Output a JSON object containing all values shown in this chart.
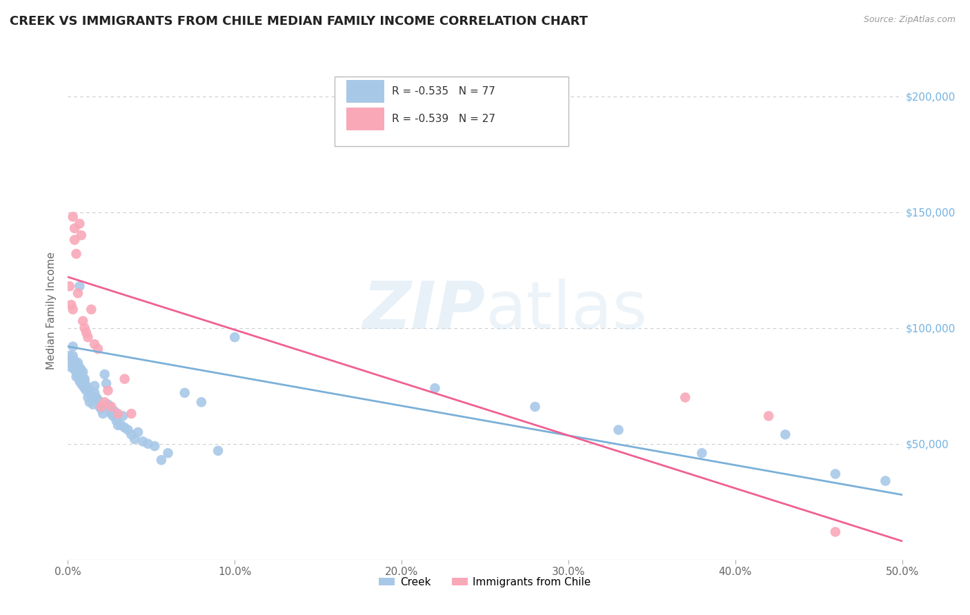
{
  "title": "CREEK VS IMMIGRANTS FROM CHILE MEDIAN FAMILY INCOME CORRELATION CHART",
  "source": "Source: ZipAtlas.com",
  "ylabel": "Median Family Income",
  "watermark_zip": "ZIP",
  "watermark_atlas": "atlas",
  "creek_R": -0.535,
  "creek_N": 77,
  "chile_R": -0.539,
  "chile_N": 27,
  "creek_color": "#a8c8e8",
  "chile_color": "#f9a8b8",
  "creek_line_color": "#7ab0d8",
  "chile_line_color": "#f06090",
  "background_color": "#ffffff",
  "grid_color": "#cccccc",
  "right_axis_color": "#74b3e0",
  "xmin": 0.0,
  "xmax": 0.5,
  "ymin": 0,
  "ymax": 215000,
  "creek_x": [
    0.001,
    0.002,
    0.002,
    0.003,
    0.003,
    0.003,
    0.004,
    0.004,
    0.004,
    0.005,
    0.005,
    0.005,
    0.005,
    0.006,
    0.006,
    0.006,
    0.007,
    0.007,
    0.007,
    0.007,
    0.008,
    0.008,
    0.008,
    0.009,
    0.009,
    0.009,
    0.01,
    0.01,
    0.01,
    0.011,
    0.011,
    0.012,
    0.012,
    0.013,
    0.013,
    0.014,
    0.015,
    0.015,
    0.016,
    0.016,
    0.017,
    0.018,
    0.019,
    0.02,
    0.021,
    0.022,
    0.023,
    0.024,
    0.025,
    0.026,
    0.027,
    0.028,
    0.029,
    0.03,
    0.032,
    0.033,
    0.034,
    0.036,
    0.038,
    0.04,
    0.042,
    0.045,
    0.048,
    0.052,
    0.056,
    0.06,
    0.07,
    0.08,
    0.09,
    0.1,
    0.22,
    0.28,
    0.33,
    0.38,
    0.43,
    0.46,
    0.49
  ],
  "creek_y": [
    88000,
    86000,
    83000,
    92000,
    88000,
    84000,
    86000,
    82000,
    85000,
    84000,
    81000,
    79000,
    83000,
    82000,
    79000,
    85000,
    118000,
    80000,
    77000,
    83000,
    79000,
    76000,
    82000,
    78000,
    75000,
    81000,
    78000,
    74000,
    77000,
    75000,
    73000,
    74000,
    70000,
    72000,
    68000,
    71000,
    69000,
    67000,
    72000,
    75000,
    70000,
    69000,
    66000,
    65000,
    63000,
    80000,
    76000,
    67000,
    65000,
    63000,
    62000,
    64000,
    60000,
    58000,
    58000,
    62000,
    57000,
    56000,
    54000,
    52000,
    55000,
    51000,
    50000,
    49000,
    43000,
    46000,
    72000,
    68000,
    47000,
    96000,
    74000,
    66000,
    56000,
    46000,
    54000,
    37000,
    34000
  ],
  "chile_x": [
    0.001,
    0.002,
    0.003,
    0.003,
    0.004,
    0.004,
    0.005,
    0.006,
    0.007,
    0.008,
    0.009,
    0.01,
    0.011,
    0.012,
    0.014,
    0.016,
    0.018,
    0.02,
    0.022,
    0.024,
    0.026,
    0.03,
    0.034,
    0.038,
    0.37,
    0.42,
    0.46
  ],
  "chile_y": [
    118000,
    110000,
    108000,
    148000,
    143000,
    138000,
    132000,
    115000,
    145000,
    140000,
    103000,
    100000,
    98000,
    96000,
    108000,
    93000,
    91000,
    66000,
    68000,
    73000,
    66000,
    63000,
    78000,
    63000,
    70000,
    62000,
    12000
  ],
  "creek_trend_x": [
    0.0,
    0.5
  ],
  "creek_trend_y": [
    92000,
    28000
  ],
  "chile_trend_x": [
    0.0,
    0.5
  ],
  "chile_trend_y": [
    122000,
    8000
  ],
  "yticks": [
    0,
    50000,
    100000,
    150000,
    200000
  ],
  "ytick_labels_right": [
    "",
    "$50,000",
    "$100,000",
    "$150,000",
    "$200,000"
  ],
  "xticks": [
    0.0,
    0.1,
    0.2,
    0.3,
    0.4,
    0.5
  ],
  "xtick_labels": [
    "0.0%",
    "10.0%",
    "20.0%",
    "30.0%",
    "40.0%",
    "50.0%"
  ]
}
